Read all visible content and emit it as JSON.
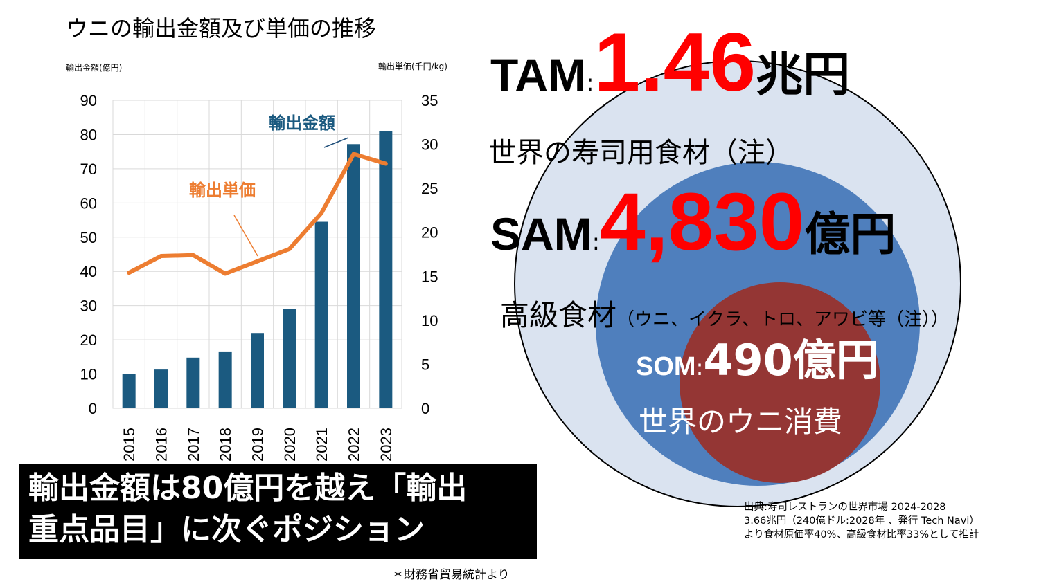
{
  "chart_title": "ウニの輸出金額及び単価の推移",
  "chart_data": {
    "type": "bar",
    "title": "ウニの輸出金額及び単価の推移",
    "categories": [
      "2015",
      "2016",
      "2017",
      "2018",
      "2019",
      "2020",
      "2021",
      "2022",
      "2023"
    ],
    "series": [
      {
        "name": "輸出金額",
        "type": "bar",
        "axis": "left",
        "color": "#1b5a80",
        "values": [
          10,
          11.3,
          14.8,
          16.6,
          22,
          29,
          54.5,
          77.2,
          81
        ]
      },
      {
        "name": "輸出単価",
        "type": "line",
        "axis": "right",
        "color": "#ed7d31",
        "values": [
          15.4,
          17.3,
          17.4,
          15.3,
          16.7,
          18.1,
          22.2,
          28.9,
          27.8
        ]
      }
    ],
    "y_left": {
      "label": "輸出金額(億円)",
      "ylim": [
        0,
        90
      ],
      "ticks": [
        "0",
        "10",
        "20",
        "30",
        "40",
        "50",
        "60",
        "70",
        "80",
        "90"
      ]
    },
    "y_right": {
      "label": "輸出単価(千円/kg)",
      "ylim": [
        0,
        35
      ],
      "ticks": [
        "0",
        "5",
        "10",
        "15",
        "20",
        "25",
        "30",
        "35"
      ]
    },
    "grid": true,
    "annotations": {
      "bar_label": "輸出金額",
      "line_label": "輸出単価"
    }
  },
  "market": {
    "tam": {
      "label": "TAM",
      "colon": ":",
      "value": "1.46",
      "unit": "兆円",
      "desc": "世界の寿司用食材（注）"
    },
    "sam": {
      "label": "SAM",
      "colon": ":",
      "value": "4,830",
      "unit": "億円",
      "desc_main": "高級食材",
      "desc_sub": "（ウニ、イクラ、トロ、アワビ等（注））"
    },
    "som": {
      "label": "SOM",
      "colon": ":",
      "value": "490億円",
      "desc": "世界のウニ消費"
    }
  },
  "callout": {
    "line1": "輸出金額は80億円を越え「輸出",
    "line2": "重点品目」に次ぐポジション"
  },
  "source_note": "＊財務省貿易統計より",
  "citation": {
    "line1": "出典:寿司レストランの世界市場 2024-2028",
    "line2": "3.66兆円（240億ドル:2028年 、発行 Tech Navi）",
    "line3": "より食材原価率40%、高級食材比率33%として推計"
  },
  "colors": {
    "tam_circle": "#dae3f0",
    "sam_circle": "#4f7fbd",
    "som_circle": "#943634",
    "red": "#ff0000"
  }
}
